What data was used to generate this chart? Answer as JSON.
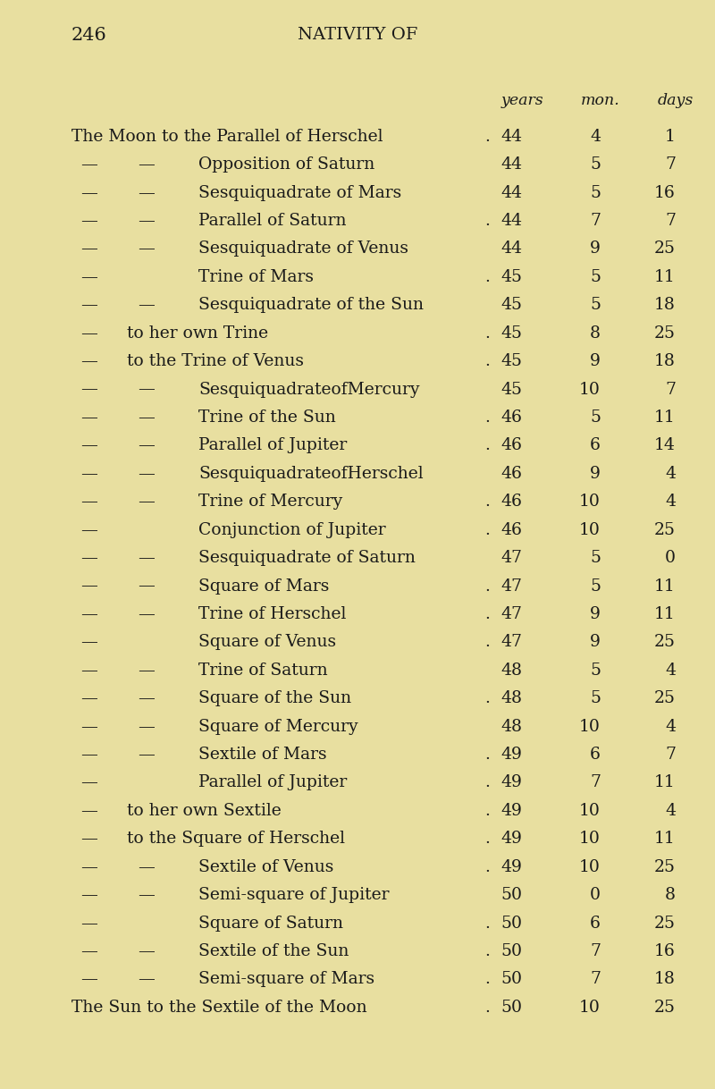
{
  "bg_color": "#e8dfa0",
  "page_number": "246",
  "header_center": "NATIVITY OF",
  "rows": [
    {
      "indent": 0,
      "dash1": false,
      "dash2": false,
      "text": "The Moon to the Parallel of Herschel",
      "dot": true,
      "years": "44",
      "mon": "4",
      "days": "1"
    },
    {
      "indent": 1,
      "dash1": true,
      "dash2": true,
      "text": "Opposition of Saturn",
      "dot": false,
      "years": "44",
      "mon": "5",
      "days": "7"
    },
    {
      "indent": 1,
      "dash1": true,
      "dash2": true,
      "text": "Sesquiquadrate of Mars",
      "dot": false,
      "years": "44",
      "mon": "5",
      "days": "16"
    },
    {
      "indent": 1,
      "dash1": true,
      "dash2": true,
      "text": "Parallel of Saturn",
      "dot": true,
      "years": "44",
      "mon": "7",
      "days": "7"
    },
    {
      "indent": 1,
      "dash1": true,
      "dash2": true,
      "text": "Sesquiquadrate of Venus",
      "dot": false,
      "years": "44",
      "mon": "9",
      "days": "25"
    },
    {
      "indent": 1,
      "dash1": true,
      "dash2": false,
      "text": "Trine of Mars",
      "dot": true,
      "years": "45",
      "mon": "5",
      "days": "11"
    },
    {
      "indent": 1,
      "dash1": true,
      "dash2": true,
      "text": "Sesquiquadrate of the Sun",
      "dot": false,
      "years": "45",
      "mon": "5",
      "days": "18"
    },
    {
      "indent": 2,
      "dash1": false,
      "dash2": false,
      "text": "to her own Trine",
      "dot": true,
      "years": "45",
      "mon": "8",
      "days": "25"
    },
    {
      "indent": 2,
      "dash1": false,
      "dash2": false,
      "text": "to the Trine of Venus",
      "dot": true,
      "years": "45",
      "mon": "9",
      "days": "18"
    },
    {
      "indent": 1,
      "dash1": true,
      "dash2": true,
      "text": "SesquiquadrateofMercury",
      "dot": false,
      "years": "45",
      "mon": "10",
      "days": "7"
    },
    {
      "indent": 1,
      "dash1": true,
      "dash2": true,
      "text": "Trine of the Sun",
      "dot": true,
      "years": "46",
      "mon": "5",
      "days": "11"
    },
    {
      "indent": 1,
      "dash1": true,
      "dash2": true,
      "text": "Parallel of Jupiter",
      "dot": true,
      "years": "46",
      "mon": "6",
      "days": "14"
    },
    {
      "indent": 1,
      "dash1": true,
      "dash2": true,
      "text": "SesquiquadrateofHerschel",
      "dot": false,
      "years": "46",
      "mon": "9",
      "days": "4"
    },
    {
      "indent": 1,
      "dash1": true,
      "dash2": true,
      "text": "Trine of Mercury",
      "dot": true,
      "years": "46",
      "mon": "10",
      "days": "4"
    },
    {
      "indent": 1,
      "dash1": true,
      "dash2": false,
      "text": "Conjunction of Jupiter",
      "dot": true,
      "years": "46",
      "mon": "10",
      "days": "25"
    },
    {
      "indent": 1,
      "dash1": true,
      "dash2": true,
      "text": "Sesquiquadrate of Saturn",
      "dot": false,
      "years": "47",
      "mon": "5",
      "days": "0"
    },
    {
      "indent": 1,
      "dash1": true,
      "dash2": true,
      "text": "Square of Mars",
      "dot": true,
      "years": "47",
      "mon": "5",
      "days": "11"
    },
    {
      "indent": 1,
      "dash1": true,
      "dash2": true,
      "text": "Trine of Herschel",
      "dot": true,
      "years": "47",
      "mon": "9",
      "days": "11"
    },
    {
      "indent": 1,
      "dash1": true,
      "dash2": false,
      "text": "Square of Venus",
      "dot": true,
      "years": "47",
      "mon": "9",
      "days": "25"
    },
    {
      "indent": 1,
      "dash1": true,
      "dash2": true,
      "text": "Trine of Saturn",
      "dot": false,
      "years": "48",
      "mon": "5",
      "days": "4"
    },
    {
      "indent": 1,
      "dash1": true,
      "dash2": true,
      "text": "Square of the Sun",
      "dot": true,
      "years": "48",
      "mon": "5",
      "days": "25"
    },
    {
      "indent": 1,
      "dash1": true,
      "dash2": true,
      "text": "Square of Mercury",
      "dot": false,
      "years": "48",
      "mon": "10",
      "days": "4"
    },
    {
      "indent": 1,
      "dash1": true,
      "dash2": true,
      "text": "Sextile of Mars",
      "dot": true,
      "years": "49",
      "mon": "6",
      "days": "7"
    },
    {
      "indent": 1,
      "dash1": true,
      "dash2": false,
      "text": "Parallel of Jupiter",
      "dot": true,
      "years": "49",
      "mon": "7",
      "days": "11"
    },
    {
      "indent": 2,
      "dash1": false,
      "dash2": false,
      "text": "to her own Sextile",
      "dot": true,
      "years": "49",
      "mon": "10",
      "days": "4"
    },
    {
      "indent": 2,
      "dash1": false,
      "dash2": false,
      "text": "to the Square of Herschel",
      "dot": true,
      "years": "49",
      "mon": "10",
      "days": "11"
    },
    {
      "indent": 1,
      "dash1": true,
      "dash2": true,
      "text": "Sextile of Venus",
      "dot": true,
      "years": "49",
      "mon": "10",
      "days": "25"
    },
    {
      "indent": 1,
      "dash1": true,
      "dash2": true,
      "text": "Semi-square of Jupiter",
      "dot": false,
      "years": "50",
      "mon": "0",
      "days": "8"
    },
    {
      "indent": 1,
      "dash1": true,
      "dash2": false,
      "text": "Square of Saturn",
      "dot": true,
      "years": "50",
      "mon": "6",
      "days": "25"
    },
    {
      "indent": 1,
      "dash1": true,
      "dash2": true,
      "text": "Sextile of the Sun",
      "dot": true,
      "years": "50",
      "mon": "7",
      "days": "16"
    },
    {
      "indent": 1,
      "dash1": true,
      "dash2": true,
      "text": "Semi-square of Mars",
      "dot": true,
      "years": "50",
      "mon": "7",
      "days": "18"
    },
    {
      "indent": 0,
      "dash1": false,
      "dash2": false,
      "text": "The Sun to the Sextile of the Moon",
      "dot": true,
      "years": "50",
      "mon": "10",
      "days": "25"
    }
  ],
  "text_color": "#1a1a1a",
  "font_size": 13.5,
  "header_font_size": 14,
  "page_num_font_size": 15
}
